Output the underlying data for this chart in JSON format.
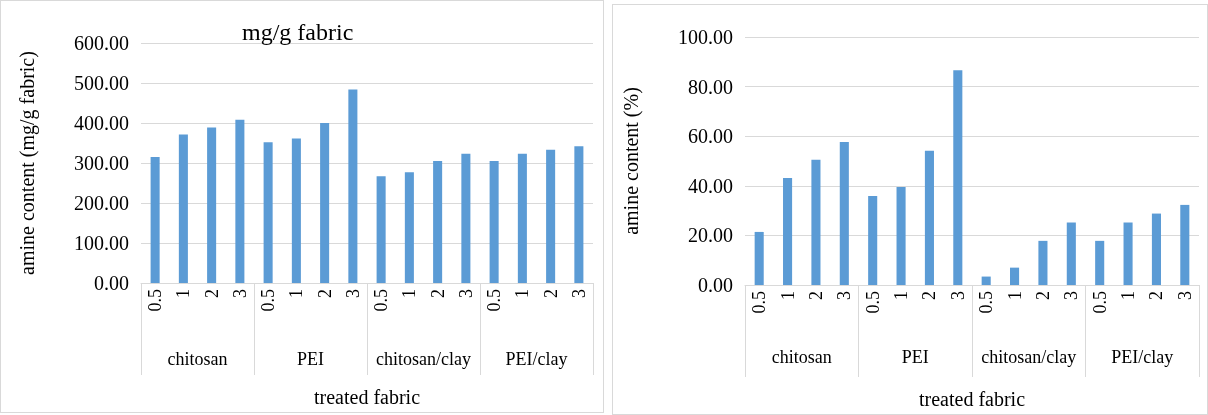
{
  "chart_data": [
    {
      "type": "bar",
      "title": "mg/g fabric",
      "xlabel": "treated fabric",
      "ylabel": "amine content (mg/g fabric)",
      "categories": [
        "0.5",
        "1",
        "2",
        "3",
        "0.5",
        "1",
        "2",
        "3",
        "0.5",
        "1",
        "2",
        "3",
        "0.5",
        "1",
        "2",
        "3"
      ],
      "values": [
        315,
        371,
        389,
        408,
        352,
        361,
        400,
        484,
        267,
        277,
        305,
        323,
        305,
        323,
        333,
        342
      ],
      "color": "#5b9bd5",
      "ylim": [
        0,
        600
      ],
      "yticks": [
        {
          "value": 0,
          "label": "0.00"
        },
        {
          "value": 100,
          "label": "100.00"
        },
        {
          "value": 200,
          "label": "200.00"
        },
        {
          "value": 300,
          "label": "300.00"
        },
        {
          "value": 400,
          "label": "400.00"
        },
        {
          "value": 500,
          "label": "500.00"
        },
        {
          "value": 600,
          "label": "600.00"
        }
      ],
      "grid": "y",
      "annotations": [
        "chitosan",
        "PEI",
        "chitosan/clay",
        "PEI/clay"
      ]
    },
    {
      "type": "bar",
      "xlabel": "treated fabric",
      "ylabel": "amine content (%)",
      "categories": [
        "0.5",
        "1",
        "2",
        "3",
        "0.5",
        "1",
        "2",
        "3",
        "0.5",
        "1",
        "2",
        "3",
        "0.5",
        "1",
        "2",
        "3"
      ],
      "values": [
        21.4,
        43.1,
        50.5,
        57.7,
        35.9,
        39.5,
        54.1,
        86.6,
        3.4,
        7.0,
        17.8,
        25.2,
        17.8,
        25.2,
        28.8,
        32.3
      ],
      "color": "#5b9bd5",
      "ylim": [
        0,
        100
      ],
      "yticks": [
        {
          "value": 0,
          "label": "0.00"
        },
        {
          "value": 20,
          "label": "20.00"
        },
        {
          "value": 40,
          "label": "40.00"
        },
        {
          "value": 60,
          "label": "60.00"
        },
        {
          "value": 80,
          "label": "80.00"
        },
        {
          "value": 100,
          "label": "100.00"
        }
      ],
      "grid": "y",
      "annotations": [
        "chitosan",
        "PEI",
        "chitosan/clay",
        "PEI/clay"
      ]
    }
  ]
}
